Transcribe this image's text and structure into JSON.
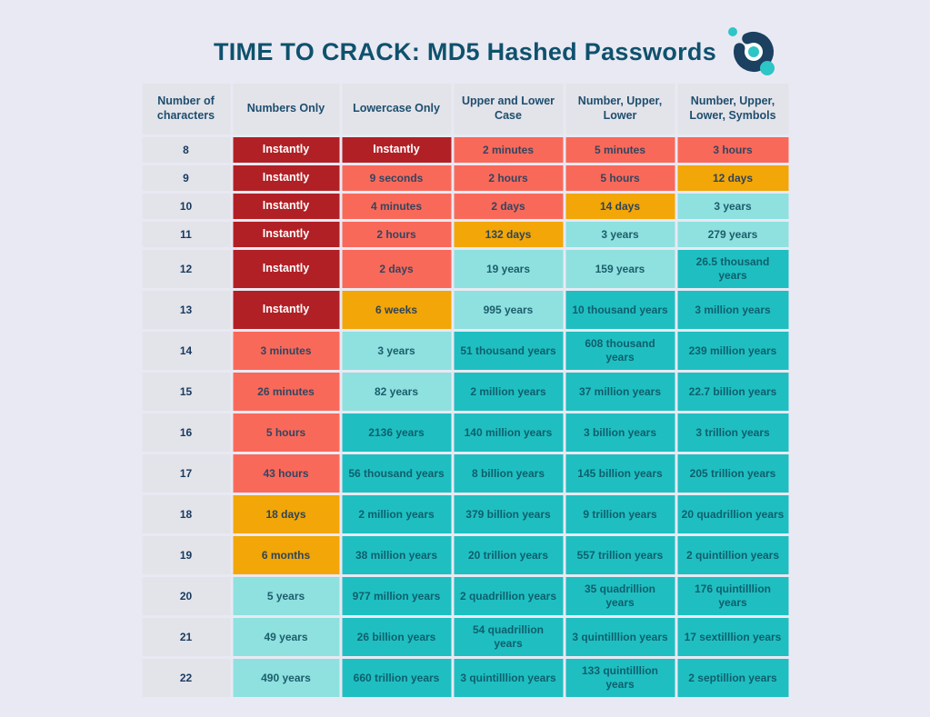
{
  "title": "TIME TO CRACK: MD5 Hashed Passwords",
  "logo": {
    "name": "brand-orbit-logo"
  },
  "colors": {
    "page_background": "#e9e9f3",
    "title_text": "#0f516d",
    "header_cell_background": "#e3e3ea",
    "instant": "#b12025",
    "fast": "#f9695a",
    "medium": "#f2a607",
    "slow": "#8ee1df",
    "secure": "#1fbfc1",
    "logo_navy": "#1b4060",
    "logo_teal": "#2ec5c6"
  },
  "table": {
    "headers": [
      "Number of characters",
      "Numbers Only",
      "Lowercase Only",
      "Upper and Lower Case",
      "Number, Upper, Lower",
      "Number, Upper, Lower, Symbols"
    ],
    "rows": [
      {
        "chars": "8",
        "cells": [
          {
            "text": "Instantly",
            "level": "instant"
          },
          {
            "text": "Instantly",
            "level": "instant"
          },
          {
            "text": "2 minutes",
            "level": "fast"
          },
          {
            "text": "5 minutes",
            "level": "fast"
          },
          {
            "text": "3 hours",
            "level": "fast"
          }
        ]
      },
      {
        "chars": "9",
        "cells": [
          {
            "text": "Instantly",
            "level": "instant"
          },
          {
            "text": "9 seconds",
            "level": "fast"
          },
          {
            "text": "2 hours",
            "level": "fast"
          },
          {
            "text": "5 hours",
            "level": "fast"
          },
          {
            "text": "12 days",
            "level": "medium"
          }
        ]
      },
      {
        "chars": "10",
        "cells": [
          {
            "text": "Instantly",
            "level": "instant"
          },
          {
            "text": "4 minutes",
            "level": "fast"
          },
          {
            "text": "2 days",
            "level": "fast"
          },
          {
            "text": "14 days",
            "level": "medium"
          },
          {
            "text": "3 years",
            "level": "slow"
          }
        ]
      },
      {
        "chars": "11",
        "cells": [
          {
            "text": "Instantly",
            "level": "instant"
          },
          {
            "text": "2 hours",
            "level": "fast"
          },
          {
            "text": "132 days",
            "level": "medium"
          },
          {
            "text": "3 years",
            "level": "slow"
          },
          {
            "text": "279 years",
            "level": "slow"
          }
        ]
      },
      {
        "chars": "12",
        "cells": [
          {
            "text": "Instantly",
            "level": "instant"
          },
          {
            "text": "2 days",
            "level": "fast"
          },
          {
            "text": "19 years",
            "level": "slow"
          },
          {
            "text": "159 years",
            "level": "slow"
          },
          {
            "text": "26.5 thousand years",
            "level": "secure"
          }
        ]
      },
      {
        "chars": "13",
        "cells": [
          {
            "text": "Instantly",
            "level": "instant"
          },
          {
            "text": "6 weeks",
            "level": "medium"
          },
          {
            "text": "995 years",
            "level": "slow"
          },
          {
            "text": "10 thousand years",
            "level": "secure"
          },
          {
            "text": "3 million years",
            "level": "secure"
          }
        ]
      },
      {
        "chars": "14",
        "cells": [
          {
            "text": "3 minutes",
            "level": "fast"
          },
          {
            "text": "3 years",
            "level": "slow"
          },
          {
            "text": "51 thousand years",
            "level": "secure"
          },
          {
            "text": "608 thousand years",
            "level": "secure"
          },
          {
            "text": "239 million years",
            "level": "secure"
          }
        ]
      },
      {
        "chars": "15",
        "cells": [
          {
            "text": "26 minutes",
            "level": "fast"
          },
          {
            "text": "82 years",
            "level": "slow"
          },
          {
            "text": "2 million years",
            "level": "secure"
          },
          {
            "text": "37 million years",
            "level": "secure"
          },
          {
            "text": "22.7 billion years",
            "level": "secure"
          }
        ]
      },
      {
        "chars": "16",
        "cells": [
          {
            "text": "5 hours",
            "level": "fast"
          },
          {
            "text": "2136 years",
            "level": "secure"
          },
          {
            "text": "140 million years",
            "level": "secure"
          },
          {
            "text": "3 billion years",
            "level": "secure"
          },
          {
            "text": "3 trillion years",
            "level": "secure"
          }
        ]
      },
      {
        "chars": "17",
        "cells": [
          {
            "text": "43 hours",
            "level": "fast"
          },
          {
            "text": "56 thousand years",
            "level": "secure"
          },
          {
            "text": "8 billion years",
            "level": "secure"
          },
          {
            "text": "145 billion years",
            "level": "secure"
          },
          {
            "text": "205 trillion years",
            "level": "secure"
          }
        ]
      },
      {
        "chars": "18",
        "cells": [
          {
            "text": "18 days",
            "level": "medium"
          },
          {
            "text": "2 million years",
            "level": "secure"
          },
          {
            "text": "379 billion years",
            "level": "secure"
          },
          {
            "text": "9 trillion years",
            "level": "secure"
          },
          {
            "text": "20 quadrillion years",
            "level": "secure"
          }
        ]
      },
      {
        "chars": "19",
        "cells": [
          {
            "text": "6 months",
            "level": "medium"
          },
          {
            "text": "38 million years",
            "level": "secure"
          },
          {
            "text": "20 trillion years",
            "level": "secure"
          },
          {
            "text": "557 trillion years",
            "level": "secure"
          },
          {
            "text": "2 quintillion years",
            "level": "secure"
          }
        ]
      },
      {
        "chars": "20",
        "cells": [
          {
            "text": "5 years",
            "level": "slow"
          },
          {
            "text": "977 million years",
            "level": "secure"
          },
          {
            "text": "2 quadrillion years",
            "level": "secure"
          },
          {
            "text": "35 quadrillion years",
            "level": "secure"
          },
          {
            "text": "176 quintilllion years",
            "level": "secure"
          }
        ]
      },
      {
        "chars": "21",
        "cells": [
          {
            "text": "49 years",
            "level": "slow"
          },
          {
            "text": "26 billion years",
            "level": "secure"
          },
          {
            "text": "54 quadrillion years",
            "level": "secure"
          },
          {
            "text": "3 quintilllion years",
            "level": "secure"
          },
          {
            "text": "17 sextilllion years",
            "level": "secure"
          }
        ]
      },
      {
        "chars": "22",
        "cells": [
          {
            "text": "490 years",
            "level": "slow"
          },
          {
            "text": "660 trillion years",
            "level": "secure"
          },
          {
            "text": "3 quintilllion years",
            "level": "secure"
          },
          {
            "text": "133 quintilllion years",
            "level": "secure"
          },
          {
            "text": "2 septillion years",
            "level": "secure"
          }
        ]
      }
    ]
  },
  "chart_data": {
    "type": "table",
    "title": "TIME TO CRACK: MD5 Hashed Passwords",
    "columns": [
      "Number of characters",
      "Numbers Only",
      "Lowercase Only",
      "Upper and Lower Case",
      "Number, Upper, Lower",
      "Number, Upper, Lower, Symbols"
    ],
    "rows": [
      [
        "8",
        "Instantly",
        "Instantly",
        "2 minutes",
        "5 minutes",
        "3 hours"
      ],
      [
        "9",
        "Instantly",
        "9 seconds",
        "2 hours",
        "5 hours",
        "12 days"
      ],
      [
        "10",
        "Instantly",
        "4 minutes",
        "2 days",
        "14 days",
        "3 years"
      ],
      [
        "11",
        "Instantly",
        "2 hours",
        "132 days",
        "3 years",
        "279 years"
      ],
      [
        "12",
        "Instantly",
        "2 days",
        "19 years",
        "159 years",
        "26.5 thousand years"
      ],
      [
        "13",
        "Instantly",
        "6 weeks",
        "995 years",
        "10 thousand years",
        "3 million years"
      ],
      [
        "14",
        "3 minutes",
        "3 years",
        "51 thousand years",
        "608 thousand years",
        "239 million years"
      ],
      [
        "15",
        "26 minutes",
        "82 years",
        "2 million years",
        "37 million years",
        "22.7 billion years"
      ],
      [
        "16",
        "5 hours",
        "2136 years",
        "140 million years",
        "3 billion years",
        "3 trillion years"
      ],
      [
        "17",
        "43 hours",
        "56 thousand years",
        "8 billion years",
        "145 billion years",
        "205 trillion years"
      ],
      [
        "18",
        "18 days",
        "2 million years",
        "379 billion years",
        "9 trillion years",
        "20 quadrillion years"
      ],
      [
        "19",
        "6 months",
        "38 million years",
        "20 trillion years",
        "557 trillion years",
        "2 quintillion years"
      ],
      [
        "20",
        "5 years",
        "977 million years",
        "2 quadrillion years",
        "35 quadrillion years",
        "176 quintilllion years"
      ],
      [
        "21",
        "49 years",
        "26 billion years",
        "54 quadrillion years",
        "3 quintilllion years",
        "17 sextilllion years"
      ],
      [
        "22",
        "490 years",
        "660 trillion years",
        "3 quintilllion years",
        "133 quintilllion years",
        "2 septillion years"
      ]
    ],
    "cell_color_scale": {
      "instant": "#b12025",
      "fast": "#f9695a",
      "medium": "#f2a607",
      "slow": "#8ee1df",
      "secure": "#1fbfc1"
    }
  }
}
